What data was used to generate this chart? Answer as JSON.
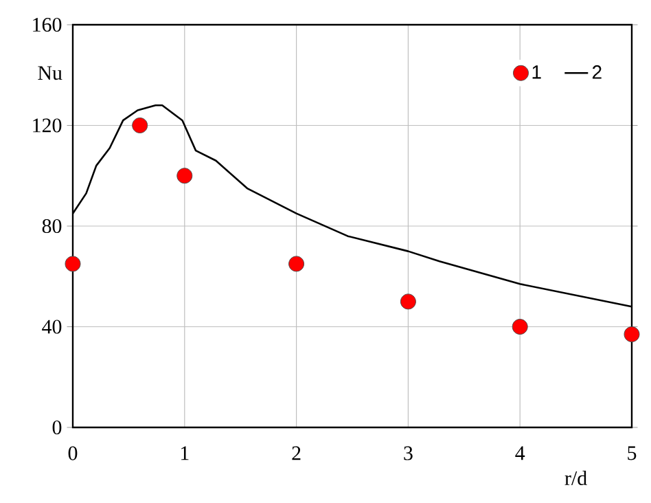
{
  "chart_data": {
    "type": "scatter",
    "xlabel": "r/d",
    "ylabel": "Nu",
    "xlim": [
      0,
      5
    ],
    "ylim": [
      0,
      160
    ],
    "xticks": [
      0,
      1,
      2,
      3,
      4,
      5
    ],
    "yticks": [
      0,
      40,
      80,
      120,
      160
    ],
    "grid": true,
    "legend": "top right",
    "series": [
      {
        "name": "1",
        "color": "#ff0000",
        "marker": "circle",
        "x": [
          0,
          0.6,
          1,
          2,
          3,
          4,
          5
        ],
        "values": [
          65,
          120,
          100,
          65,
          50,
          40,
          37
        ]
      },
      {
        "name": "2",
        "type": "line",
        "color": "#000000",
        "marker": "none",
        "line_style": "solid",
        "x": [
          0,
          0.12,
          0.21,
          0.33,
          0.45,
          0.58,
          0.74,
          0.8,
          0.98,
          1.1,
          1.28,
          1.56,
          2,
          2.46,
          3,
          3.28,
          4,
          5
        ],
        "values": [
          85,
          93,
          104,
          111,
          122,
          126,
          128,
          128,
          122,
          110,
          106,
          95,
          85,
          76,
          70,
          66,
          57,
          48
        ]
      }
    ]
  }
}
